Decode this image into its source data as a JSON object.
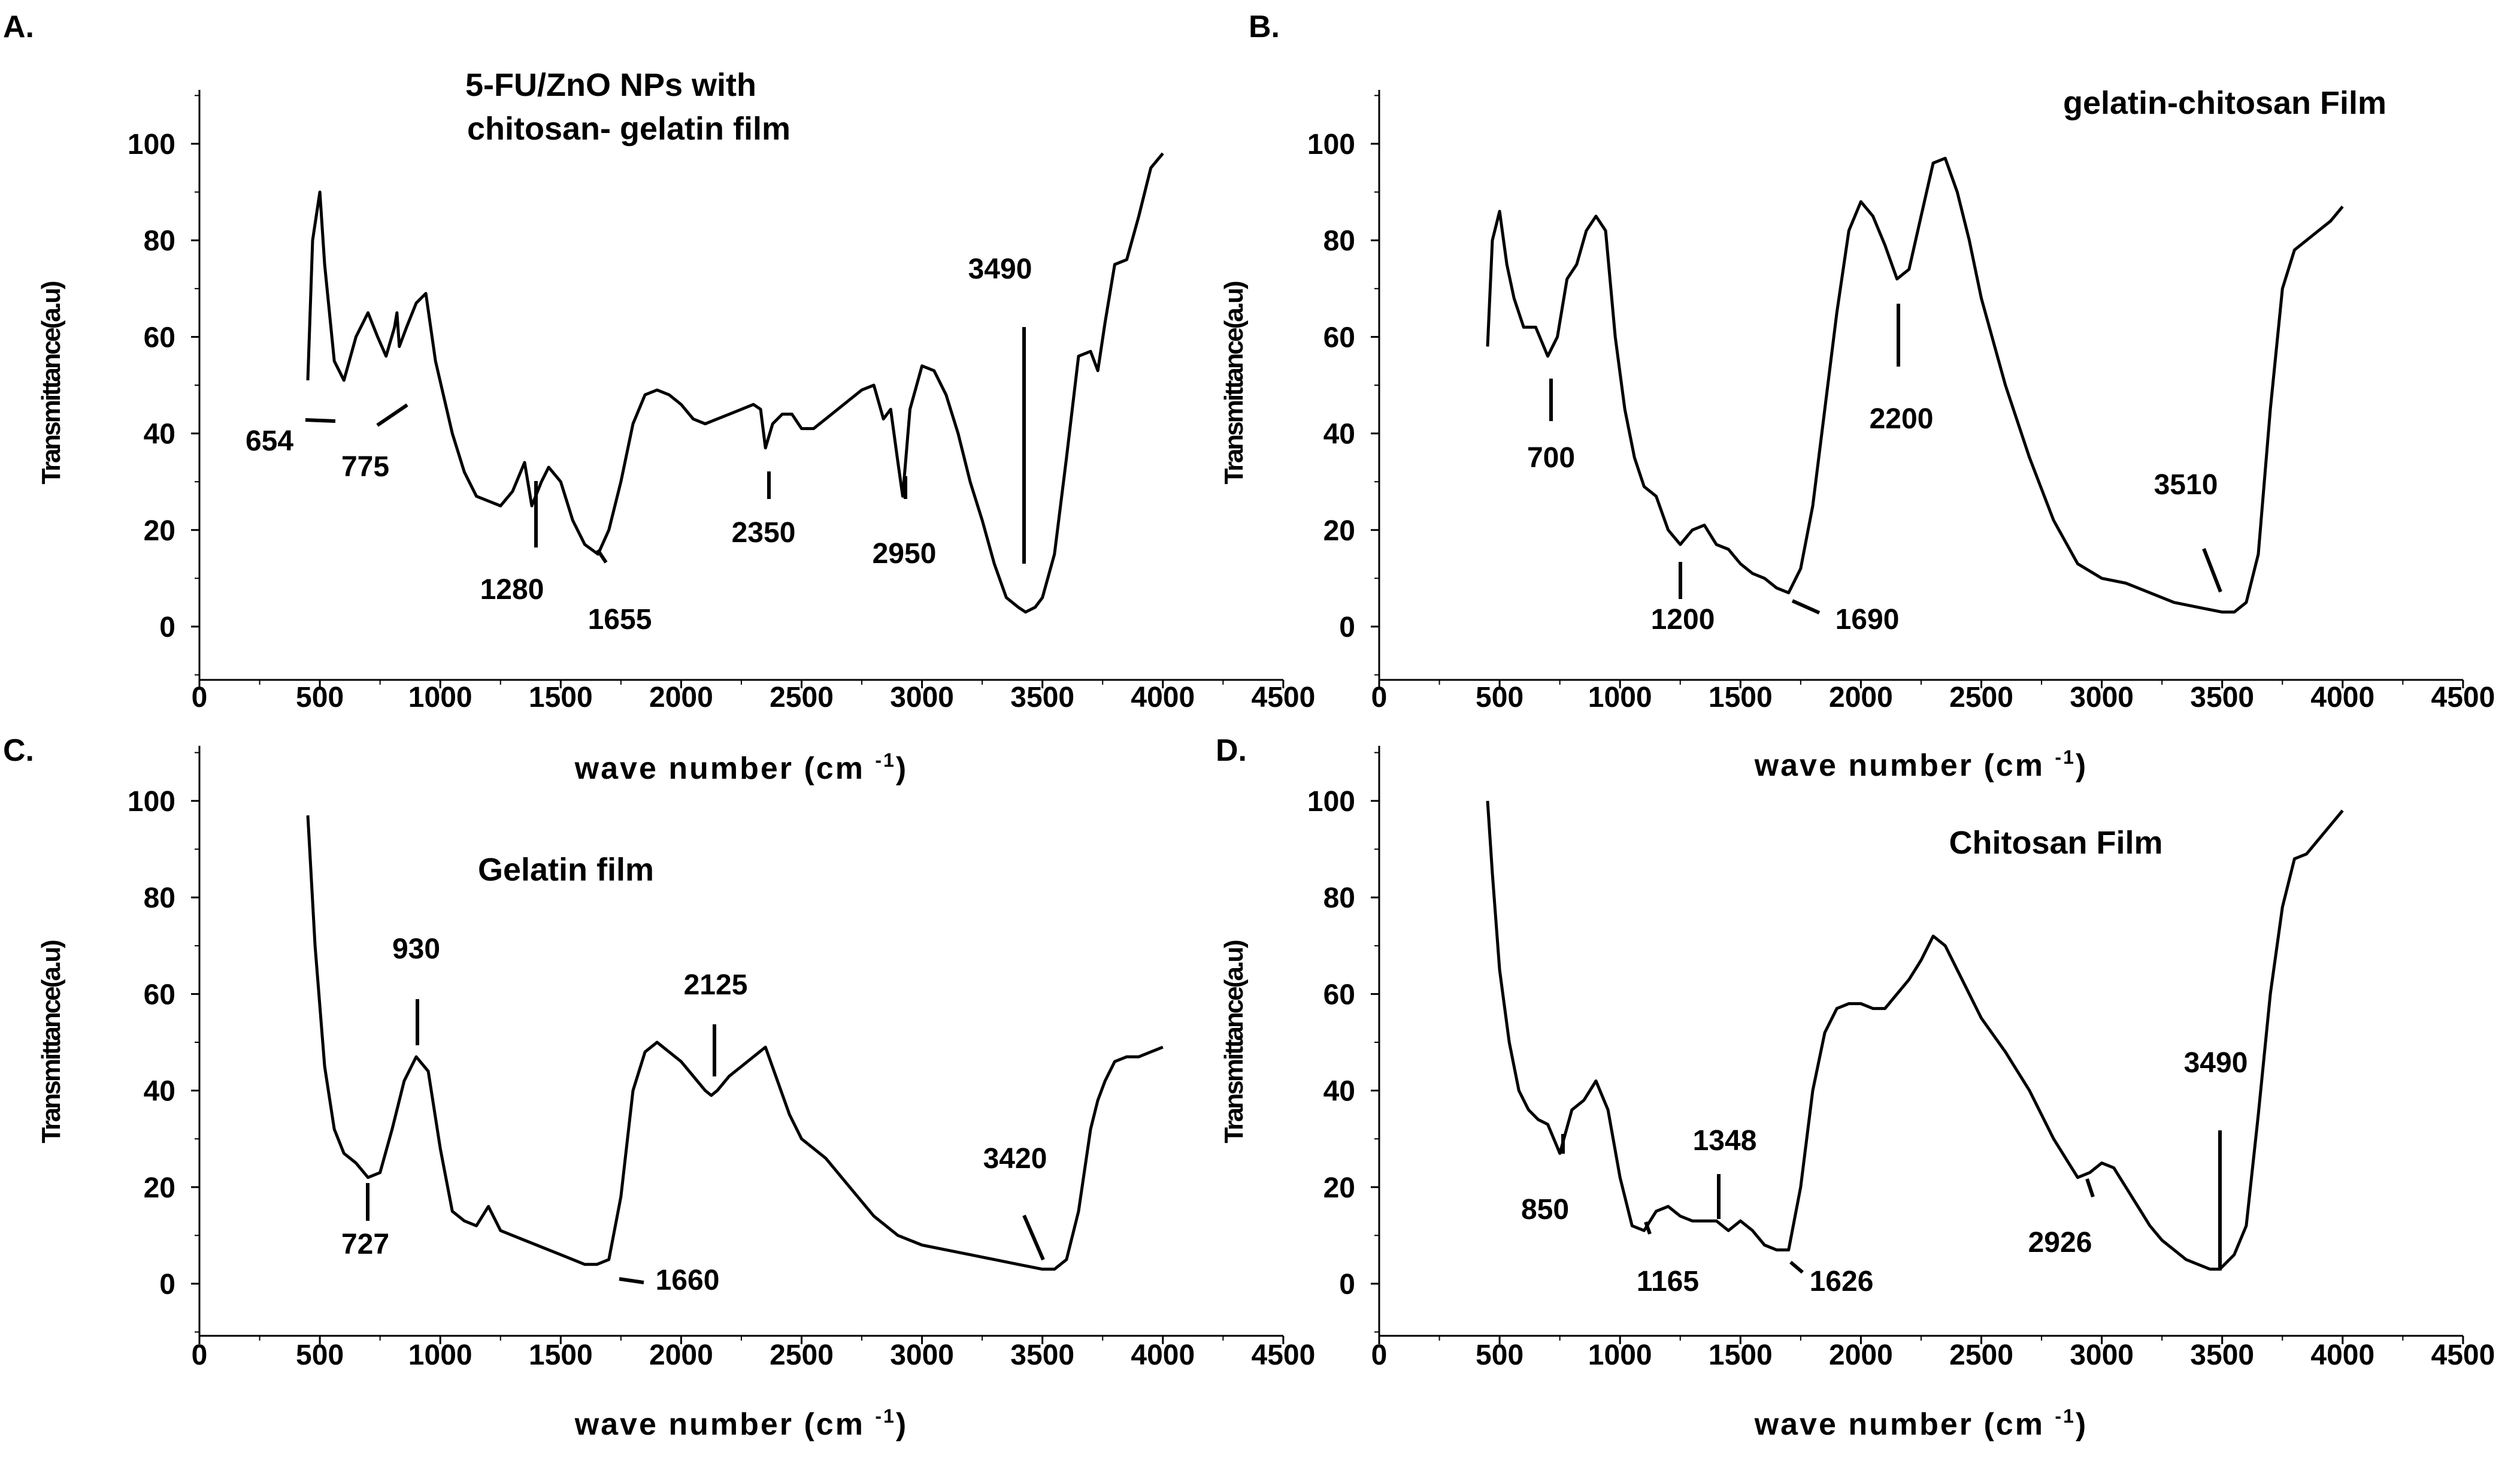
{
  "chart_data": [
    {
      "type": "line",
      "panel": "A.",
      "title": "5-FU/ZnO NPs with\nchitosan- gelatin film",
      "xlabel": "wave number (cm",
      "xlabel_sup": "-1",
      "xlabel_end": ")",
      "ylabel": "Transmittance(a.u)",
      "xlim": [
        0,
        4500
      ],
      "ylim": [
        -10,
        110
      ],
      "xticks": [
        0,
        500,
        1000,
        1500,
        2000,
        2500,
        3000,
        3500,
        4000,
        4500
      ],
      "yticks": [
        0,
        20,
        40,
        60,
        80,
        100
      ],
      "series": [
        {
          "name": "5-FU/ZnO NPs with chitosan-gelatin film",
          "x": [
            450,
            470,
            500,
            520,
            560,
            600,
            650,
            700,
            740,
            775,
            810,
            820,
            830,
            860,
            900,
            940,
            980,
            1050,
            1100,
            1150,
            1200,
            1250,
            1300,
            1350,
            1380,
            1420,
            1450,
            1500,
            1550,
            1600,
            1655,
            1700,
            1750,
            1800,
            1850,
            1900,
            1950,
            2000,
            2050,
            2100,
            2150,
            2200,
            2250,
            2300,
            2330,
            2350,
            2380,
            2420,
            2460,
            2500,
            2550,
            2600,
            2650,
            2700,
            2750,
            2800,
            2840,
            2870,
            2900,
            2920,
            2950,
            3000,
            3050,
            3100,
            3150,
            3200,
            3250,
            3300,
            3350,
            3400,
            3430,
            3470,
            3500,
            3550,
            3600,
            3650,
            3700,
            3730,
            3760,
            3800,
            3850,
            3900,
            3950,
            4000
          ],
          "y": [
            51,
            80,
            90,
            75,
            55,
            51,
            60,
            65,
            60,
            56,
            62,
            65,
            58,
            62,
            67,
            69,
            55,
            40,
            32,
            27,
            26,
            25,
            28,
            34,
            25,
            30,
            33,
            30,
            22,
            17,
            15,
            20,
            30,
            42,
            48,
            49,
            48,
            46,
            43,
            42,
            43,
            44,
            45,
            46,
            45,
            37,
            42,
            44,
            44,
            41,
            41,
            43,
            45,
            47,
            49,
            50,
            43,
            45,
            34,
            27,
            45,
            54,
            53,
            48,
            40,
            30,
            22,
            13,
            6,
            4,
            3,
            4,
            6,
            15,
            35,
            56,
            57,
            53,
            63,
            75,
            76,
            85,
            95,
            98
          ]
        }
      ],
      "annotations": [
        {
          "label": "654",
          "x": 654,
          "y": 48
        },
        {
          "label": "775",
          "x": 775,
          "y": 52
        },
        {
          "label": "1280",
          "x": 1280,
          "y": 15
        },
        {
          "label": "1655",
          "x": 1655,
          "y": 12
        },
        {
          "label": "2350",
          "x": 2350,
          "y": 30
        },
        {
          "label": "2950",
          "x": 2950,
          "y": 22
        },
        {
          "label": "3490",
          "x": 3490,
          "y": 61
        }
      ]
    },
    {
      "type": "line",
      "panel": "B.",
      "title": "gelatin-chitosan Film",
      "xlabel": "wave number (cm",
      "xlabel_sup": "-1",
      "xlabel_end": ")",
      "ylabel": "Transmittance(a.u)",
      "xlim": [
        0,
        4500
      ],
      "ylim": [
        -10,
        110
      ],
      "xticks": [
        0,
        500,
        1000,
        1500,
        2000,
        2500,
        3000,
        3500,
        4000,
        4500
      ],
      "yticks": [
        0,
        20,
        40,
        60,
        80,
        100
      ],
      "series": [
        {
          "name": "gelatin-chitosan Film",
          "x": [
            450,
            470,
            500,
            530,
            560,
            600,
            650,
            700,
            740,
            780,
            820,
            860,
            900,
            940,
            980,
            1020,
            1060,
            1100,
            1150,
            1200,
            1250,
            1300,
            1350,
            1400,
            1450,
            1500,
            1550,
            1600,
            1650,
            1700,
            1750,
            1800,
            1850,
            1900,
            1950,
            2000,
            2050,
            2100,
            2150,
            2200,
            2250,
            2300,
            2350,
            2400,
            2450,
            2500,
            2600,
            2700,
            2800,
            2900,
            3000,
            3100,
            3200,
            3300,
            3400,
            3500,
            3550,
            3600,
            3650,
            3700,
            3750,
            3800,
            3850,
            3900,
            3950,
            4000
          ],
          "y": [
            58,
            80,
            86,
            75,
            68,
            62,
            62,
            56,
            60,
            72,
            75,
            82,
            85,
            82,
            60,
            45,
            35,
            29,
            27,
            20,
            17,
            20,
            21,
            17,
            16,
            13,
            11,
            10,
            8,
            7,
            12,
            25,
            45,
            65,
            82,
            88,
            85,
            79,
            72,
            74,
            85,
            96,
            97,
            90,
            80,
            68,
            50,
            35,
            22,
            13,
            10,
            9,
            7,
            5,
            4,
            3,
            3,
            5,
            15,
            45,
            70,
            78,
            80,
            82,
            84,
            87
          ]
        }
      ],
      "annotations": [
        {
          "label": "700",
          "x": 700,
          "y": 48
        },
        {
          "label": "1200",
          "x": 1200,
          "y": 15
        },
        {
          "label": "1690",
          "x": 1690,
          "y": 6
        },
        {
          "label": "2200",
          "x": 2200,
          "y": 67
        },
        {
          "label": "3510",
          "x": 3510,
          "y": 8
        }
      ]
    },
    {
      "type": "line",
      "panel": "C.",
      "title": "Gelatin film",
      "xlabel": "wave number (cm",
      "xlabel_sup": "-1",
      "xlabel_end": ")",
      "ylabel": "Transmittance(a.u)",
      "xlim": [
        0,
        4500
      ],
      "ylim": [
        -10,
        110
      ],
      "xticks": [
        0,
        500,
        1000,
        1500,
        2000,
        2500,
        3000,
        3500,
        4000,
        4500
      ],
      "yticks": [
        0,
        20,
        40,
        60,
        80,
        100
      ],
      "series": [
        {
          "name": "Gelatin film",
          "x": [
            450,
            480,
            520,
            560,
            600,
            650,
            700,
            750,
            800,
            850,
            900,
            950,
            1000,
            1050,
            1100,
            1150,
            1200,
            1250,
            1300,
            1350,
            1400,
            1450,
            1500,
            1550,
            1600,
            1650,
            1700,
            1750,
            1800,
            1850,
            1900,
            1950,
            2000,
            2050,
            2100,
            2125,
            2150,
            2200,
            2250,
            2300,
            2350,
            2400,
            2450,
            2500,
            2600,
            2700,
            2800,
            2900,
            3000,
            3100,
            3200,
            3300,
            3400,
            3500,
            3550,
            3600,
            3650,
            3700,
            3730,
            3760,
            3800,
            3850,
            3900,
            3950,
            4000
          ],
          "y": [
            97,
            70,
            45,
            32,
            27,
            25,
            22,
            23,
            32,
            42,
            47,
            44,
            28,
            15,
            13,
            12,
            16,
            11,
            10,
            9,
            8,
            7,
            6,
            5,
            4,
            4,
            5,
            18,
            40,
            48,
            50,
            48,
            46,
            43,
            40,
            39,
            40,
            43,
            45,
            47,
            49,
            42,
            35,
            30,
            26,
            20,
            14,
            10,
            8,
            7,
            6,
            5,
            4,
            3,
            3,
            5,
            15,
            32,
            38,
            42,
            46,
            47,
            47,
            48,
            49
          ]
        }
      ],
      "annotations": [
        {
          "label": "727",
          "x": 727,
          "y": 16
        },
        {
          "label": "930",
          "x": 930,
          "y": 53
        },
        {
          "label": "1660",
          "x": 1660,
          "y": 2
        },
        {
          "label": "2125",
          "x": 2125,
          "y": 47
        },
        {
          "label": "3420",
          "x": 3420,
          "y": 11
        }
      ]
    },
    {
      "type": "line",
      "panel": "D.",
      "title": "Chitosan Film",
      "xlabel": "wave number (cm",
      "xlabel_sup": "-1",
      "xlabel_end": ")",
      "ylabel": "Transmittance(a.u)",
      "xlim": [
        0,
        4500
      ],
      "ylim": [
        -10,
        110
      ],
      "xticks": [
        0,
        500,
        1000,
        1500,
        2000,
        2500,
        3000,
        3500,
        4000,
        4500
      ],
      "yticks": [
        0,
        20,
        40,
        60,
        80,
        100
      ],
      "series": [
        {
          "name": "Chitosan Film",
          "x": [
            450,
            470,
            500,
            540,
            580,
            620,
            660,
            700,
            750,
            800,
            850,
            900,
            950,
            1000,
            1050,
            1100,
            1150,
            1200,
            1250,
            1300,
            1350,
            1400,
            1450,
            1500,
            1550,
            1600,
            1650,
            1700,
            1750,
            1800,
            1850,
            1900,
            1950,
            2000,
            2050,
            2100,
            2150,
            2200,
            2250,
            2300,
            2350,
            2400,
            2450,
            2500,
            2600,
            2700,
            2800,
            2900,
            2950,
            3000,
            3050,
            3100,
            3150,
            3200,
            3250,
            3300,
            3350,
            3400,
            3450,
            3490,
            3550,
            3600,
            3650,
            3700,
            3750,
            3800,
            3850,
            3900,
            3950,
            4000
          ],
          "y": [
            100,
            85,
            65,
            50,
            40,
            36,
            34,
            33,
            27,
            36,
            38,
            42,
            36,
            22,
            12,
            11,
            15,
            16,
            14,
            13,
            13,
            13,
            11,
            13,
            11,
            8,
            7,
            7,
            20,
            40,
            52,
            57,
            58,
            58,
            57,
            57,
            60,
            63,
            67,
            72,
            70,
            65,
            60,
            55,
            48,
            40,
            30,
            22,
            23,
            25,
            24,
            20,
            16,
            12,
            9,
            7,
            5,
            4,
            3,
            3,
            6,
            12,
            35,
            60,
            78,
            88,
            89,
            92,
            95,
            98
          ]
        }
      ],
      "annotations": [
        {
          "label": "850",
          "x": 850,
          "y": 30
        },
        {
          "label": "1165",
          "x": 1165,
          "y": 10
        },
        {
          "label": "1348",
          "x": 1348,
          "y": 13
        },
        {
          "label": "1626",
          "x": 1626,
          "y": 5
        },
        {
          "label": "2926",
          "x": 2926,
          "y": 23
        },
        {
          "label": "3490",
          "x": 3490,
          "y": 32
        }
      ]
    }
  ]
}
